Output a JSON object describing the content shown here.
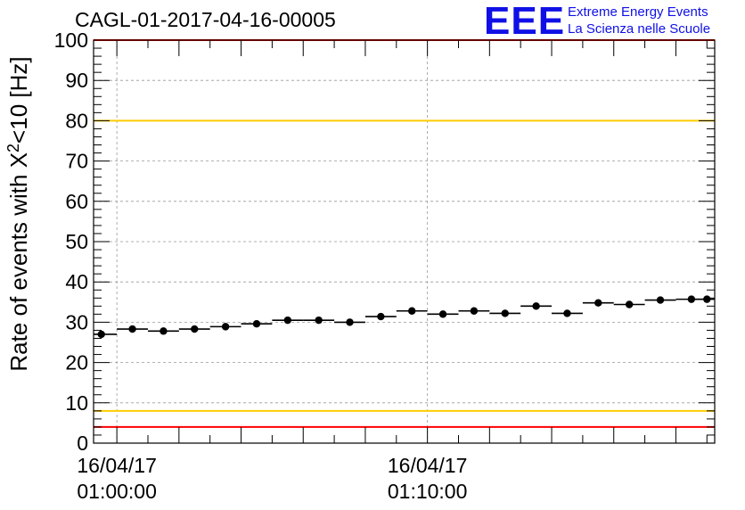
{
  "header": {
    "run_title": "CAGL-01-2017-04-16-00005",
    "logo": "EEE",
    "logo_line1": "Extreme Energy Events",
    "logo_line2": "La Scienza nelle Scuole"
  },
  "colors": {
    "logo": "#1010e6",
    "red_line": "#ff0000",
    "yellow_line": "#ffcc00",
    "markers": "#000000",
    "grid": "#999999"
  },
  "chart_data": {
    "type": "scatter",
    "ylabel_pre": "Rate of events with X",
    "ylabel_sup": "2",
    "ylabel_post": "<10 [Hz]",
    "ylim": [
      0,
      100
    ],
    "y_major_ticks": [
      0,
      10,
      20,
      30,
      40,
      50,
      60,
      70,
      80,
      90,
      100
    ],
    "xlim_minutes": [
      -0.75,
      19.25
    ],
    "x_tick_labels": [
      {
        "minute": 0,
        "date": "16/04/17",
        "time": "01:00:00"
      },
      {
        "minute": 10,
        "date": "16/04/17",
        "time": "01:10:00"
      }
    ],
    "grid": true,
    "horizontal_lines": [
      {
        "y": 4,
        "color": "#ff0000"
      },
      {
        "y": 8,
        "color": "#ffcc00"
      },
      {
        "y": 80,
        "color": "#ffcc00"
      },
      {
        "y": 100,
        "color": "#ff0000"
      }
    ],
    "series": [
      {
        "x_minutes": [
          -0.5,
          0.5,
          1.5,
          2.5,
          3.5,
          4.5,
          5.5,
          6.5,
          7.5,
          8.5,
          9.5,
          10.5,
          11.5,
          12.5,
          13.5,
          14.5,
          15.5,
          16.5,
          17.5,
          18.5,
          19.0
        ],
        "values": [
          27.0,
          28.3,
          27.8,
          28.3,
          28.9,
          29.6,
          30.5,
          30.5,
          30.0,
          31.4,
          32.8,
          32.0,
          32.8,
          32.2,
          34.0,
          32.2,
          34.8,
          34.4,
          35.5,
          35.7,
          35.7
        ],
        "x_err_minutes": 0.5
      }
    ]
  }
}
